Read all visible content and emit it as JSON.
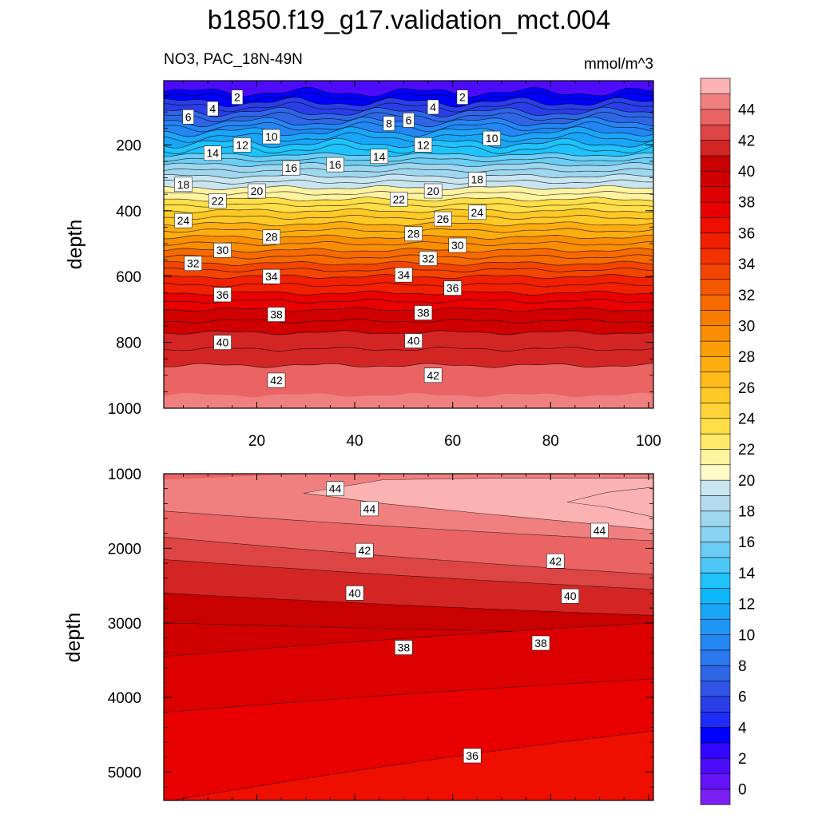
{
  "title": "b1850.f19_g17.validation_mct.004",
  "chart_data": [
    {
      "type": "heatmap",
      "panel": "top",
      "subtitle_left": "NO3, PAC_18N-49N",
      "subtitle_right": "mmol/m^3",
      "ylabel": "depth",
      "xlim": [
        1,
        101
      ],
      "ylim": [
        1000,
        5
      ],
      "y_reversed": true,
      "x_ticks": [
        "20",
        "40",
        "60",
        "80",
        "100"
      ],
      "y_ticks": [
        "200",
        "400",
        "600",
        "800",
        "1000"
      ],
      "contour_interval": 1,
      "contour_levels": [
        {
          "value": 2,
          "depth": 40
        },
        {
          "value": 4,
          "depth": 70
        },
        {
          "value": 6,
          "depth": 100
        },
        {
          "value": 8,
          "depth": 130
        },
        {
          "value": 10,
          "depth": 160
        },
        {
          "value": 12,
          "depth": 195
        },
        {
          "value": 14,
          "depth": 230
        },
        {
          "value": 16,
          "depth": 260
        },
        {
          "value": 18,
          "depth": 295
        },
        {
          "value": 20,
          "depth": 330
        },
        {
          "value": 22,
          "depth": 365
        },
        {
          "value": 24,
          "depth": 400
        },
        {
          "value": 26,
          "depth": 440
        },
        {
          "value": 28,
          "depth": 480
        },
        {
          "value": 30,
          "depth": 520
        },
        {
          "value": 32,
          "depth": 560
        },
        {
          "value": 34,
          "depth": 600
        },
        {
          "value": 36,
          "depth": 650
        },
        {
          "value": 38,
          "depth": 700
        },
        {
          "value": 40,
          "depth": 770
        },
        {
          "value": 42,
          "depth": 870
        },
        {
          "value": 43,
          "depth": 960
        }
      ],
      "contour_labels": [
        {
          "text": "2",
          "x": 16,
          "depth": 55
        },
        {
          "text": "4",
          "x": 11,
          "depth": 90
        },
        {
          "text": "6",
          "x": 6,
          "depth": 115
        },
        {
          "text": "2",
          "x": 62,
          "depth": 55
        },
        {
          "text": "4",
          "x": 56,
          "depth": 85
        },
        {
          "text": "6",
          "x": 51,
          "depth": 125
        },
        {
          "text": "8",
          "x": 47,
          "depth": 135
        },
        {
          "text": "10",
          "x": 23,
          "depth": 175
        },
        {
          "text": "12",
          "x": 17,
          "depth": 200
        },
        {
          "text": "14",
          "x": 11,
          "depth": 225
        },
        {
          "text": "10",
          "x": 68,
          "depth": 180
        },
        {
          "text": "12",
          "x": 54,
          "depth": 200
        },
        {
          "text": "14",
          "x": 45,
          "depth": 235
        },
        {
          "text": "16",
          "x": 36,
          "depth": 260
        },
        {
          "text": "16",
          "x": 27,
          "depth": 270
        },
        {
          "text": "18",
          "x": 5,
          "depth": 320
        },
        {
          "text": "18",
          "x": 65,
          "depth": 305
        },
        {
          "text": "20",
          "x": 20,
          "depth": 340
        },
        {
          "text": "20",
          "x": 56,
          "depth": 340
        },
        {
          "text": "22",
          "x": 12,
          "depth": 370
        },
        {
          "text": "22",
          "x": 49,
          "depth": 365
        },
        {
          "text": "24",
          "x": 5,
          "depth": 430
        },
        {
          "text": "24",
          "x": 65,
          "depth": 405
        },
        {
          "text": "26",
          "x": 58,
          "depth": 425
        },
        {
          "text": "28",
          "x": 23,
          "depth": 480
        },
        {
          "text": "28",
          "x": 52,
          "depth": 470
        },
        {
          "text": "30",
          "x": 13,
          "depth": 520
        },
        {
          "text": "30",
          "x": 61,
          "depth": 505
        },
        {
          "text": "32",
          "x": 7,
          "depth": 560
        },
        {
          "text": "32",
          "x": 55,
          "depth": 545
        },
        {
          "text": "34",
          "x": 23,
          "depth": 600
        },
        {
          "text": "34",
          "x": 50,
          "depth": 595
        },
        {
          "text": "36",
          "x": 13,
          "depth": 655
        },
        {
          "text": "36",
          "x": 60,
          "depth": 635
        },
        {
          "text": "38",
          "x": 24,
          "depth": 715
        },
        {
          "text": "38",
          "x": 54,
          "depth": 710
        },
        {
          "text": "40",
          "x": 13,
          "depth": 800
        },
        {
          "text": "40",
          "x": 52,
          "depth": 795
        },
        {
          "text": "42",
          "x": 24,
          "depth": 915
        },
        {
          "text": "42",
          "x": 56,
          "depth": 900
        }
      ]
    },
    {
      "type": "heatmap",
      "panel": "bottom",
      "ylabel": "depth",
      "ylim": [
        5380,
        1000
      ],
      "y_reversed": true,
      "y_ticks": [
        "1000",
        "2000",
        "3000",
        "4000",
        "5000"
      ],
      "contour_labels": [
        {
          "text": "44",
          "x": 36,
          "depth": 1200
        },
        {
          "text": "44",
          "x": 43,
          "depth": 1470
        },
        {
          "text": "44",
          "x": 90,
          "depth": 1760
        },
        {
          "text": "42",
          "x": 42,
          "depth": 2030
        },
        {
          "text": "42",
          "x": 81,
          "depth": 2170
        },
        {
          "text": "40",
          "x": 40,
          "depth": 2600
        },
        {
          "text": "40",
          "x": 84,
          "depth": 2640
        },
        {
          "text": "38",
          "x": 50,
          "depth": 3330
        },
        {
          "text": "38",
          "x": 78,
          "depth": 3270
        },
        {
          "text": "36",
          "x": 64,
          "depth": 4780
        }
      ]
    }
  ],
  "colorbar": {
    "labels": [
      "0",
      "2",
      "4",
      "6",
      "8",
      "10",
      "12",
      "14",
      "16",
      "18",
      "20",
      "22",
      "24",
      "26",
      "28",
      "30",
      "32",
      "34",
      "36",
      "38",
      "40",
      "42",
      "44"
    ],
    "colors": [
      "#7c1ff2",
      "#6514f7",
      "#4c0cfb",
      "#3205fe",
      "#0000ff",
      "#1f2cf5",
      "#2a3ee8",
      "#3055e6",
      "#2e66e6",
      "#2a78ee",
      "#2386f3",
      "#1f96f6",
      "#1aa6f8",
      "#0db7fb",
      "#1fc2fb",
      "#4ec8f6",
      "#6ccdf4",
      "#8bd3f2",
      "#9fd7ef",
      "#b4dcee",
      "#c9e5f0",
      "#fffbc8",
      "#fff3a2",
      "#ffe86a",
      "#fede49",
      "#fed33a",
      "#fec826",
      "#febb1a",
      "#fdad10",
      "#fc9e08",
      "#fa8e02",
      "#f87d00",
      "#f66a00",
      "#f45800",
      "#f34500",
      "#f23300",
      "#f12000",
      "#ef0f00",
      "#e90000",
      "#dc0000",
      "#d10000",
      "#c90000",
      "#d42525",
      "#dd4545",
      "#ea6464",
      "#f08080",
      "#fbb2b2"
    ]
  }
}
